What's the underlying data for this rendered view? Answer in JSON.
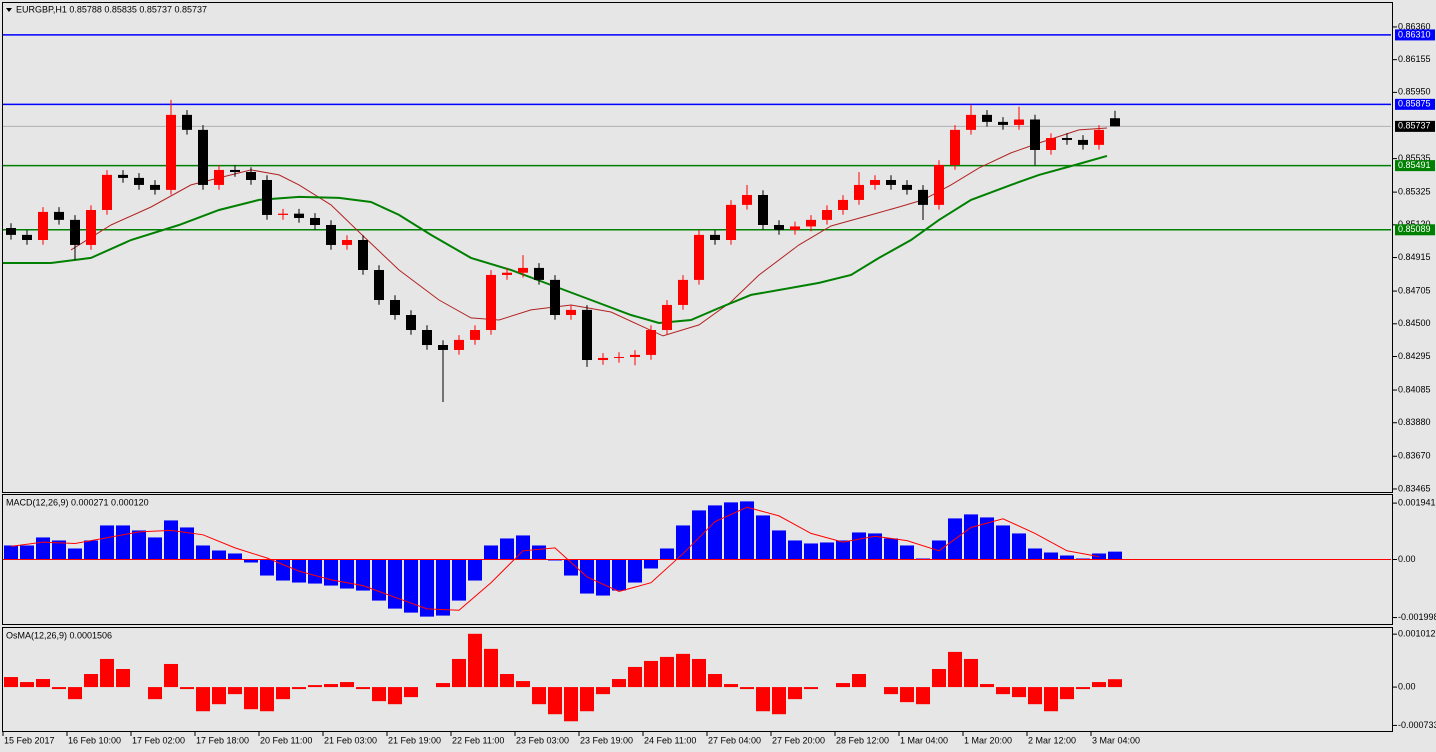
{
  "chart_data": [
    {
      "type": "candlestick",
      "title": "EURGBP,H1  0.85788 0.85835 0.85737 0.85737",
      "x": [
        2,
        6,
        10,
        14,
        18,
        22,
        26,
        30,
        34,
        38,
        42,
        46,
        50,
        54,
        58,
        62,
        66,
        70,
        74,
        78,
        82,
        86,
        90,
        94,
        98,
        102,
        106,
        110,
        114,
        118,
        122,
        126,
        130,
        134,
        138,
        142,
        146,
        150,
        154,
        158,
        162,
        166,
        170,
        174,
        178,
        182,
        186,
        190,
        194,
        198,
        202,
        206,
        210,
        214,
        218,
        222,
        226,
        230,
        234,
        238,
        242,
        246,
        250,
        254,
        258,
        262,
        266,
        270,
        274,
        278
      ],
      "open": [
        0.851,
        0.85057,
        0.85025,
        0.85201,
        0.85151,
        0.84994,
        0.85213,
        0.85433,
        0.85414,
        0.8537,
        0.85339,
        0.85809,
        0.85715,
        0.8537,
        0.85464,
        0.85451,
        0.85401,
        0.85182,
        0.8519,
        0.85163,
        0.85119,
        0.84994,
        0.85025,
        0.84837,
        0.84649,
        0.84555,
        0.84461,
        0.84367,
        0.84336,
        0.84399,
        0.84461,
        0.84806,
        0.8482,
        0.8485,
        0.84775,
        0.84555,
        0.84587,
        0.84273,
        0.84286,
        0.84292,
        0.84305,
        0.84461,
        0.84618,
        0.84775,
        0.85057,
        0.85025,
        0.85245,
        0.85307,
        0.85119,
        0.85088,
        0.8511,
        0.85151,
        0.85213,
        0.85276,
        0.8537,
        0.85401,
        0.8537,
        0.85339,
        0.85245,
        0.85495,
        0.85715,
        0.85809,
        0.85765,
        0.85746,
        0.8578,
        0.85589,
        0.85664,
        0.85652,
        0.85621,
        0.85788
      ],
      "high": [
        0.8513,
        0.85087,
        0.85231,
        0.85231,
        0.85181,
        0.85243,
        0.85463,
        0.85463,
        0.85444,
        0.854,
        0.85903,
        0.85839,
        0.85745,
        0.85494,
        0.85494,
        0.85481,
        0.85431,
        0.8522,
        0.8522,
        0.85193,
        0.85149,
        0.85055,
        0.85055,
        0.84867,
        0.84679,
        0.84585,
        0.84491,
        0.84397,
        0.84429,
        0.84491,
        0.84836,
        0.8485,
        0.8493,
        0.8488,
        0.84805,
        0.84617,
        0.84617,
        0.84316,
        0.84322,
        0.84335,
        0.84491,
        0.84648,
        0.84805,
        0.85087,
        0.85087,
        0.85275,
        0.8537,
        0.85337,
        0.85149,
        0.8514,
        0.85181,
        0.85243,
        0.85306,
        0.8545,
        0.85431,
        0.85431,
        0.854,
        0.85369,
        0.85525,
        0.85745,
        0.8587,
        0.85839,
        0.85795,
        0.8586,
        0.8581,
        0.85694,
        0.85694,
        0.85682,
        0.85745,
        0.85835
      ],
      "low": [
        0.85027,
        0.84995,
        0.84995,
        0.85121,
        0.849,
        0.84964,
        0.85183,
        0.85384,
        0.8534,
        0.85309,
        0.85309,
        0.85685,
        0.8534,
        0.8534,
        0.85421,
        0.85371,
        0.85152,
        0.85152,
        0.85133,
        0.85089,
        0.84964,
        0.84964,
        0.84807,
        0.84619,
        0.84525,
        0.84431,
        0.84337,
        0.8401,
        0.84306,
        0.84369,
        0.84431,
        0.84776,
        0.8479,
        0.84745,
        0.84525,
        0.84525,
        0.8423,
        0.84243,
        0.84256,
        0.8424,
        0.84275,
        0.84431,
        0.84588,
        0.84745,
        0.84995,
        0.84995,
        0.85215,
        0.85089,
        0.85058,
        0.85058,
        0.8508,
        0.85121,
        0.85183,
        0.85246,
        0.8534,
        0.8534,
        0.85309,
        0.8515,
        0.85215,
        0.85465,
        0.85685,
        0.85735,
        0.85716,
        0.85716,
        0.8549,
        0.85559,
        0.85622,
        0.85591,
        0.85591,
        0.85737
      ],
      "close": [
        0.85057,
        0.85025,
        0.85201,
        0.85151,
        0.84994,
        0.85213,
        0.85433,
        0.85414,
        0.8537,
        0.85339,
        0.85809,
        0.85715,
        0.8537,
        0.85464,
        0.85451,
        0.85401,
        0.85182,
        0.8519,
        0.85163,
        0.85119,
        0.84994,
        0.85025,
        0.84837,
        0.84649,
        0.84555,
        0.84461,
        0.84367,
        0.84336,
        0.84399,
        0.84461,
        0.84806,
        0.8482,
        0.8485,
        0.84775,
        0.84555,
        0.84587,
        0.84273,
        0.84286,
        0.84292,
        0.84305,
        0.84461,
        0.84618,
        0.84775,
        0.85057,
        0.85025,
        0.85245,
        0.85307,
        0.85119,
        0.85088,
        0.8511,
        0.85151,
        0.85213,
        0.85276,
        0.8537,
        0.85401,
        0.8537,
        0.85339,
        0.85245,
        0.85495,
        0.85715,
        0.85809,
        0.85765,
        0.85746,
        0.8578,
        0.85589,
        0.85664,
        0.85652,
        0.85621,
        0.85715,
        0.85737
      ],
      "up_color": "#ff0000",
      "down_color": "#000000",
      "series": [
        {
          "type": "line",
          "color": "#b22222",
          "x": [
            17,
            27,
            37,
            47,
            62,
            69,
            74,
            82,
            89,
            99,
            109,
            117,
            124,
            132,
            142,
            152,
            159,
            165,
            174,
            182,
            189,
            199,
            207,
            217,
            224,
            230,
            237,
            244,
            252,
            259,
            269,
            276
          ],
          "values": [
            0.84963,
            0.85119,
            0.85232,
            0.8537,
            0.85464,
            0.85433,
            0.8537,
            0.85245,
            0.85075,
            0.84837,
            0.84649,
            0.84537,
            0.84524,
            0.84587,
            0.84618,
            0.84574,
            0.84493,
            0.84424,
            0.84493,
            0.84637,
            0.84806,
            0.84994,
            0.85113,
            0.85182,
            0.85232,
            0.85276,
            0.8537,
            0.85477,
            0.85571,
            0.85633,
            0.85715,
            0.85727
          ]
        },
        {
          "type": "line",
          "color": "#008000",
          "x": [
            0,
            12,
            22,
            32,
            44,
            54,
            64,
            74,
            84,
            92,
            99,
            107,
            117,
            127,
            137,
            147,
            157,
            164,
            172,
            179,
            187,
            197,
            204,
            212,
            219,
            227,
            234,
            242,
            252,
            259,
            268,
            276
          ],
          "values": [
            0.84881,
            0.84881,
            0.84913,
            0.85025,
            0.85119,
            0.85213,
            0.85276,
            0.85295,
            0.85289,
            0.85263,
            0.85182,
            0.85057,
            0.84913,
            0.84837,
            0.84743,
            0.84649,
            0.84555,
            0.84505,
            0.84524,
            0.84599,
            0.84681,
            0.84725,
            0.84756,
            0.84806,
            0.84913,
            0.85025,
            0.85151,
            0.85276,
            0.8537,
            0.85433,
            0.85495,
            0.85552
          ]
        }
      ],
      "levels": [
        {
          "value": 0.8631,
          "label": "0.86310",
          "color": "#0000ff"
        },
        {
          "value": 0.85875,
          "label": "0.85875",
          "color": "#0000ff"
        },
        {
          "value": 0.85491,
          "label": "0.85491",
          "color": "#008000"
        },
        {
          "value": 0.85089,
          "label": "0.85089",
          "color": "#008000"
        }
      ],
      "last_price": {
        "value": 0.85737,
        "label": "0.85737"
      },
      "xlim": [
        0,
        347
      ],
      "ylim": [
        0.83446,
        0.8651
      ],
      "yticks": [
        {
          "value": 0.8636,
          "label": "0.86360"
        },
        0.86155,
        {
          "value": 0.8595,
          "label": "0.85950"
        },
        0.85535,
        0.85325,
        {
          "value": 0.8512,
          "label": "0.85120"
        },
        0.84915,
        0.84705,
        {
          "value": 0.845,
          "label": "0.84500"
        },
        0.84295,
        0.84085,
        {
          "value": 0.8388,
          "label": "0.83880"
        },
        {
          "value": 0.8367,
          "label": "0.83670"
        },
        0.83465
      ]
    },
    {
      "type": "bar",
      "title": "MACD(12,26,9) 0.000271 0.000120",
      "color": "#0000ff",
      "baseline_color": "#ff0000",
      "x": [
        2,
        6,
        10,
        14,
        18,
        22,
        26,
        30,
        34,
        38,
        42,
        46,
        50,
        54,
        58,
        62,
        66,
        70,
        74,
        78,
        82,
        86,
        90,
        94,
        98,
        102,
        106,
        110,
        114,
        118,
        122,
        126,
        130,
        134,
        138,
        142,
        146,
        150,
        154,
        158,
        162,
        166,
        170,
        174,
        178,
        182,
        186,
        190,
        194,
        198,
        202,
        206,
        210,
        214,
        218,
        222,
        226,
        230,
        234,
        238,
        242,
        246,
        250,
        254,
        258,
        262,
        266,
        270,
        274,
        278
      ],
      "values": [
        0.000483,
        0.000483,
        0.000759,
        0.000655,
        0.000379,
        0.000655,
        0.001172,
        0.001172,
        0.001,
        0.000759,
        0.001345,
        0.001103,
        0.000483,
        0.00031,
        0.000207,
        -0.000103,
        -0.000552,
        -0.000724,
        -0.000793,
        -0.000828,
        -0.000897,
        -0.001,
        -0.001069,
        -0.001414,
        -0.00169,
        -0.001828,
        -0.001966,
        -0.001931,
        -0.001414,
        -0.000724,
        0.000483,
        0.000724,
        0.000828,
        0.000483,
        -3.4e-05,
        -0.000552,
        -0.001172,
        -0.001241,
        -0.001069,
        -0.000793,
        -0.00031,
        0.000379,
        0.001172,
        0.00169,
        0.001862,
        0.001966,
        0.002,
        0.001517,
        0.001,
        0.000655,
        0.000552,
        0.000586,
        0.000655,
        0.000931,
        0.000897,
        0.000724,
        0.000483,
        3.4e-05,
        0.000655,
        0.001414,
        0.001552,
        0.001448,
        0.001172,
        0.000897,
        0.000379,
        0.000241,
        0.000138,
        3.4e-05,
        0.000207,
        0.000271
      ],
      "series": [
        {
          "type": "line",
          "color": "#ff0000",
          "x": [
            2,
            10,
            18,
            26,
            34,
            42,
            50,
            58,
            66,
            74,
            82,
            90,
            98,
            106,
            114,
            122,
            130,
            138,
            146,
            154,
            162,
            170,
            178,
            186,
            194,
            202,
            210,
            218,
            226,
            234,
            242,
            250,
            258,
            266,
            274
          ],
          "values": [
            0.00045,
            0.0006,
            0.00055,
            0.00075,
            0.00095,
            0.001,
            0.00085,
            0.0004,
            5e-05,
            -0.0004,
            -0.0007,
            -0.0009,
            -0.0013,
            -0.0017,
            -0.00175,
            -0.0008,
            0.0003,
            0.0004,
            -0.0006,
            -0.0011,
            -0.0008,
            0.0002,
            0.0013,
            0.0018,
            0.0015,
            0.0009,
            0.0006,
            0.0008,
            0.00065,
            0.0003,
            0.0011,
            0.0014,
            0.0009,
            0.0003,
            0.0001
          ]
        }
      ],
      "xlim": [
        0,
        347
      ],
      "ylim": [
        -0.00222,
        0.00222
      ],
      "yticks": [
        0.001941,
        {
          "value": 0,
          "label": "0.00"
        },
        -0.001998
      ]
    },
    {
      "type": "bar",
      "title": "OsMA(12,26,9) 0.0001506",
      "color": "#ff0000",
      "x": [
        2,
        6,
        10,
        14,
        18,
        22,
        26,
        30,
        34,
        38,
        42,
        46,
        50,
        54,
        58,
        62,
        66,
        70,
        74,
        78,
        82,
        86,
        90,
        94,
        98,
        102,
        106,
        110,
        114,
        118,
        122,
        126,
        130,
        134,
        138,
        142,
        146,
        150,
        154,
        158,
        162,
        166,
        170,
        174,
        178,
        182,
        186,
        190,
        194,
        198,
        202,
        206,
        210,
        214,
        218,
        222,
        226,
        230,
        234,
        238,
        242,
        246,
        250,
        254,
        258,
        262,
        266,
        270,
        274,
        278
      ],
      "values": [
        0.000192,
        9.6e-05,
        0.000154,
        -3.8e-05,
        -0.000231,
        0.00025,
        0.000538,
        0.000346,
        0,
        -0.000231,
        0.000442,
        -3.8e-05,
        -0.000462,
        -0.000327,
        -0.000135,
        -0.000423,
        -0.000462,
        -0.000231,
        -3.8e-05,
        3.8e-05,
        5.8e-05,
        9.6e-05,
        -3.8e-05,
        -0.000269,
        -0.000327,
        -0.000192,
        0,
        7.7e-05,
        0.000538,
        0.001019,
        0.000731,
        0.00025,
        0.000115,
        -0.000327,
        -0.000519,
        -0.000654,
        -0.000462,
        -0.000135,
        0.000154,
        0.000385,
        0.0005,
        0.000577,
        0.000635,
        0.000538,
        0.00025,
        5.8e-05,
        -3.8e-05,
        -0.000462,
        -0.000519,
        -0.000231,
        -3.8e-05,
        0,
        7.7e-05,
        0.00025,
        0,
        -0.000135,
        -0.000288,
        -0.000327,
        0.000346,
        0.000673,
        0.000538,
        5.8e-05,
        -0.000135,
        -0.000192,
        -0.000327,
        -0.000462,
        -0.000231,
        -3.8e-05,
        9.6e-05,
        0.0001506
      ],
      "xlim": [
        0,
        347
      ],
      "ylim": [
        -0.00084,
        0.00113
      ],
      "yticks": [
        0.001012,
        {
          "value": 0,
          "label": "0.00"
        },
        -0.000733
      ],
      "xticks": [
        {
          "value": 0,
          "label": "15 Feb 2017"
        },
        {
          "value": 16,
          "label": "16 Feb 10:00"
        },
        {
          "value": 32,
          "label": "17 Feb 02:00"
        },
        {
          "value": 48,
          "label": "17 Feb 18:00"
        },
        {
          "value": 64,
          "label": "20 Feb 11:00"
        },
        {
          "value": 80,
          "label": "21 Feb 03:00"
        },
        {
          "value": 96,
          "label": "21 Feb 19:00"
        },
        {
          "value": 112,
          "label": "22 Feb 11:00"
        },
        {
          "value": 128,
          "label": "23 Feb 03:00"
        },
        {
          "value": 144,
          "label": "23 Feb 19:00"
        },
        {
          "value": 160,
          "label": "24 Feb 11:00"
        },
        {
          "value": 176,
          "label": "27 Feb 04:00"
        },
        {
          "value": 192,
          "label": "27 Feb 20:00"
        },
        {
          "value": 208,
          "label": "28 Feb 12:00"
        },
        {
          "value": 224,
          "label": "1 Mar 04:00"
        },
        {
          "value": 240,
          "label": "1 Mar 20:00"
        },
        {
          "value": 256,
          "label": "2 Mar 12:00"
        },
        {
          "value": 272,
          "label": "3 Mar 04:00"
        }
      ]
    }
  ]
}
